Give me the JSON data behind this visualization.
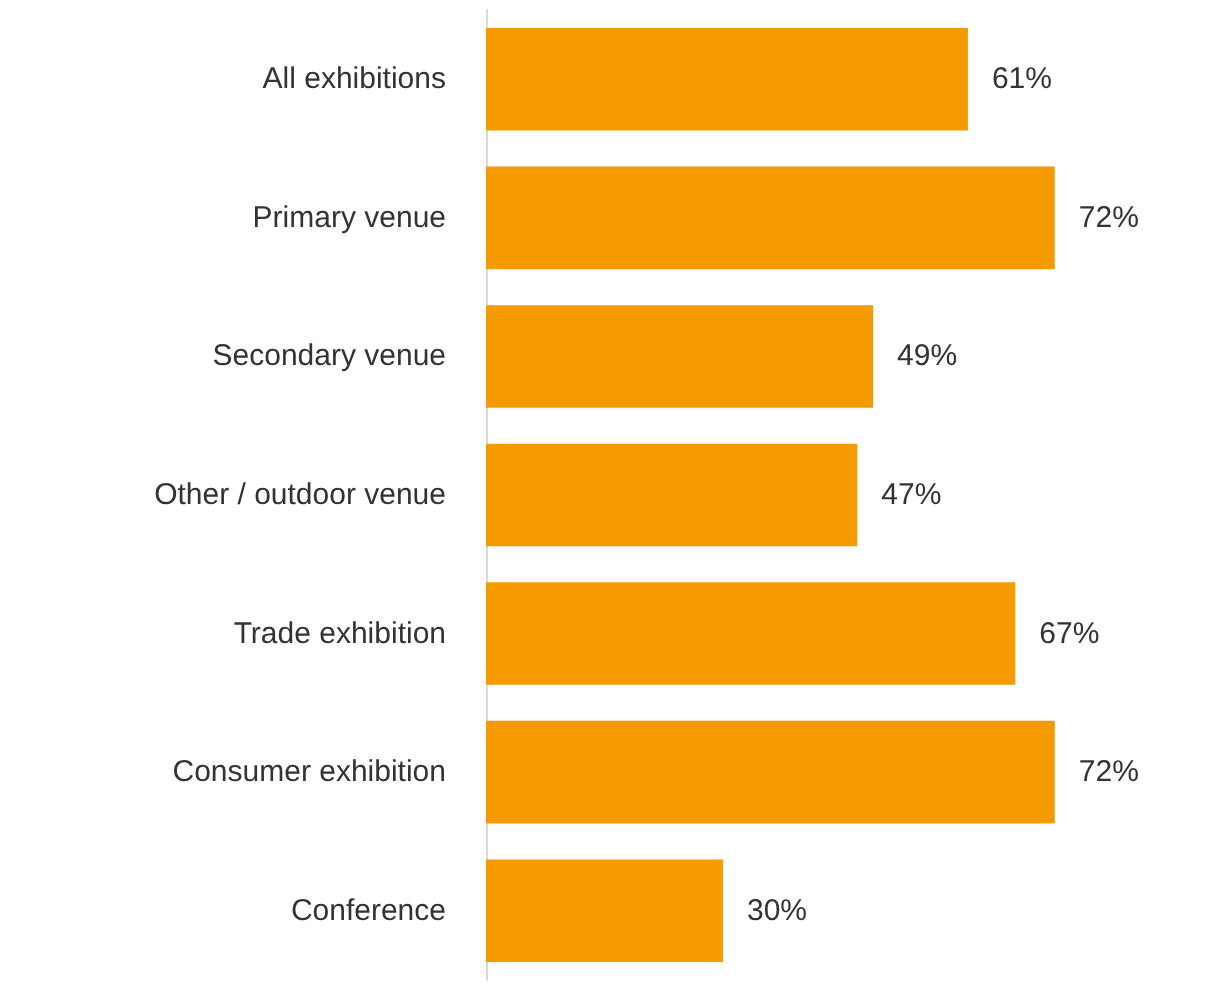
{
  "chart_data": {
    "type": "bar",
    "orientation": "horizontal",
    "categories": [
      "All exhibitions",
      "Primary venue",
      "Secondary venue",
      "Other / outdoor venue",
      "Trade exhibition",
      "Consumer exhibition",
      "Conference"
    ],
    "values": [
      61,
      72,
      49,
      47,
      67,
      72,
      30
    ],
    "value_labels": [
      "61%",
      "72%",
      "49%",
      "47%",
      "67%",
      "72%",
      "30%"
    ],
    "color": "#f59b00"
  }
}
